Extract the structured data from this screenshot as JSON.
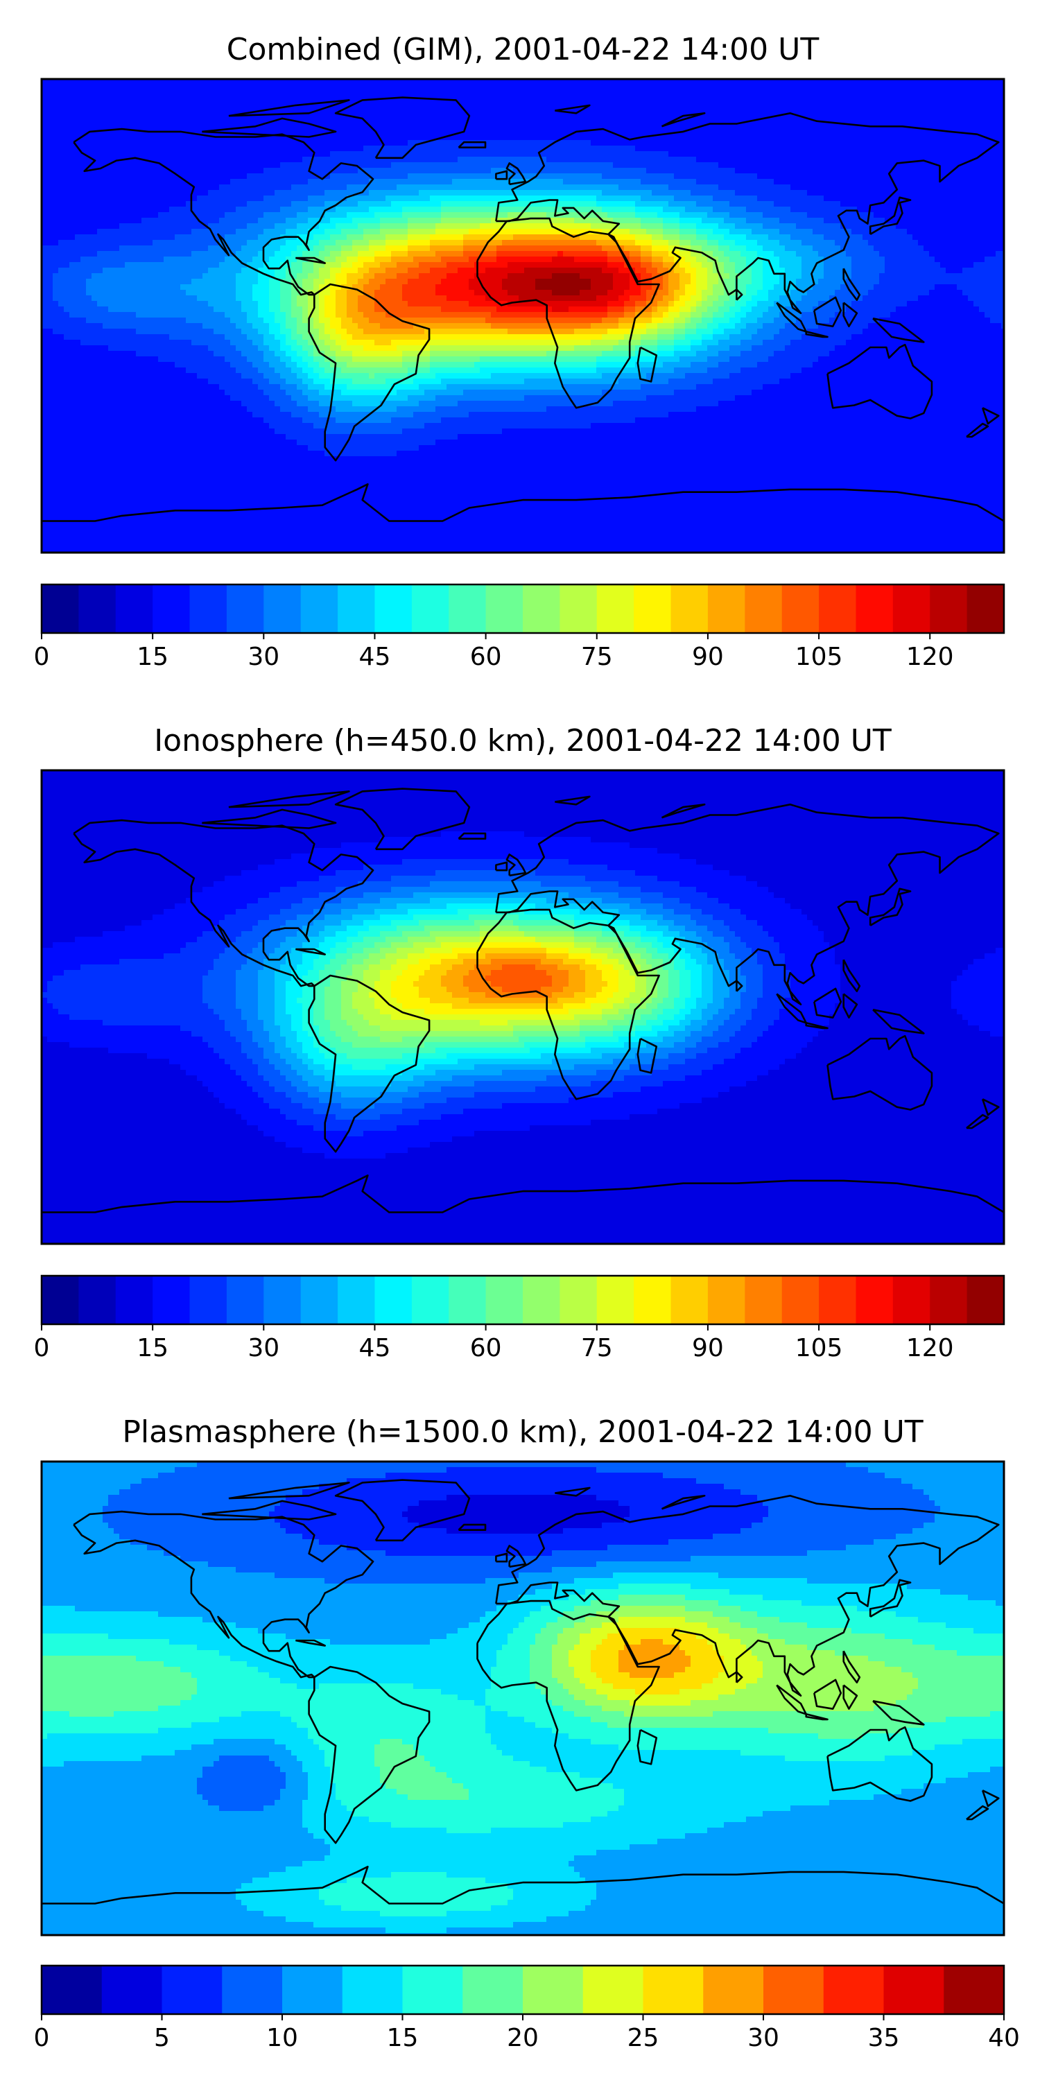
{
  "panels": [
    {
      "title": "Combined (GIM), 2001-04-22 14:00 UT",
      "colorbar": {
        "ticks": [
          "0",
          "15",
          "30",
          "45",
          "60",
          "75",
          "90",
          "105",
          "120"
        ],
        "min": 0,
        "max": 130,
        "levels": 26
      },
      "field": {
        "base": 16,
        "blobs": [
          {
            "lon": -10,
            "lat": 12,
            "amp": 95,
            "slon": 55,
            "slat": 22
          },
          {
            "lon": 38,
            "lat": 12,
            "amp": 35,
            "slon": 28,
            "slat": 16
          },
          {
            "lon": -62,
            "lat": -12,
            "amp": 30,
            "slon": 20,
            "slat": 20
          },
          {
            "lon": 100,
            "lat": 20,
            "amp": 12,
            "slon": 30,
            "slat": 12
          },
          {
            "lon": -150,
            "lat": 10,
            "amp": 14,
            "slon": 25,
            "slat": 12
          }
        ]
      }
    },
    {
      "title": "Ionosphere  (h=450.0 km), 2001-04-22 14:00 UT",
      "colorbar": {
        "ticks": [
          "0",
          "15",
          "30",
          "45",
          "60",
          "75",
          "90",
          "105",
          "120"
        ],
        "min": 0,
        "max": 130,
        "levels": 26
      },
      "field": {
        "base": 12,
        "blobs": [
          {
            "lon": -15,
            "lat": 10,
            "amp": 78,
            "slon": 52,
            "slat": 22
          },
          {
            "lon": 0,
            "lat": 12,
            "amp": 12,
            "slon": 15,
            "slat": 8
          },
          {
            "lon": 40,
            "lat": 8,
            "amp": 20,
            "slon": 25,
            "slat": 16
          },
          {
            "lon": -65,
            "lat": -20,
            "amp": 22,
            "slon": 22,
            "slat": 18
          },
          {
            "lon": -160,
            "lat": 5,
            "amp": 10,
            "slon": 25,
            "slat": 12
          }
        ]
      }
    },
    {
      "title": "Plasmasphere (h=1500.0 km), 2001-04-22 14:00 UT",
      "colorbar": {
        "ticks": [
          "0",
          "5",
          "10",
          "15",
          "20",
          "25",
          "30",
          "35",
          "40"
        ],
        "min": 0,
        "max": 40,
        "levels": 16
      },
      "field": {
        "base": 11,
        "blobs": [
          {
            "lon": 45,
            "lat": 15,
            "amp": 17,
            "slon": 30,
            "slat": 18
          },
          {
            "lon": 120,
            "lat": 5,
            "amp": 9,
            "slon": 35,
            "slat": 22
          },
          {
            "lon": -150,
            "lat": 5,
            "amp": 8,
            "slon": 40,
            "slat": 15
          },
          {
            "lon": -50,
            "lat": -15,
            "amp": 6,
            "slon": 30,
            "slat": 20
          },
          {
            "lon": 0,
            "lat": -40,
            "amp": 5,
            "slon": 50,
            "slat": 12
          },
          {
            "lon": 0,
            "lat": 70,
            "amp": -7,
            "slon": 80,
            "slat": 15
          },
          {
            "lon": -100,
            "lat": -30,
            "amp": -5,
            "slon": 15,
            "slat": 10
          },
          {
            "lon": -40,
            "lat": -75,
            "amp": 6,
            "slon": 40,
            "slat": 8
          }
        ]
      }
    }
  ],
  "colors": {
    "colormap": "jet",
    "coastline": "#000000",
    "frame": "#000000"
  }
}
